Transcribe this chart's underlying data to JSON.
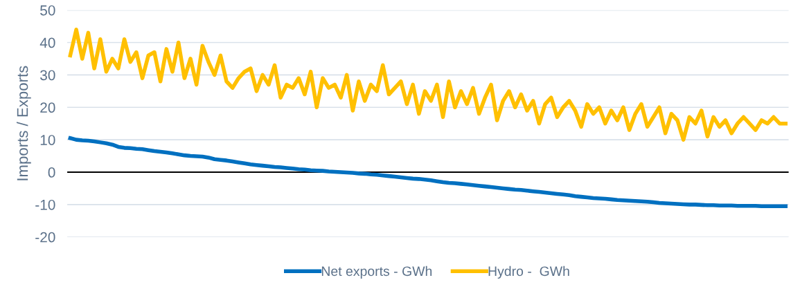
{
  "chart_data": {
    "type": "line",
    "ylabel": "Imports / Exports",
    "categories": [
      null,
      null,
      null,
      null,
      null,
      null,
      null,
      null,
      null,
      null,
      null,
      null,
      null,
      null,
      null,
      null,
      null,
      null,
      null,
      null,
      null,
      null,
      null,
      null,
      null,
      null,
      null,
      null,
      null,
      null,
      null,
      null,
      null,
      null,
      null,
      null,
      null,
      null,
      null,
      null,
      null,
      null,
      null,
      null,
      null,
      null,
      null,
      null,
      null,
      null,
      null,
      null,
      null,
      null,
      null,
      null,
      null,
      null,
      null,
      null,
      null,
      null,
      null,
      null,
      null,
      null,
      null,
      null,
      null,
      null,
      null,
      null,
      null,
      null,
      null,
      null,
      null,
      null,
      null,
      null,
      null,
      null,
      null,
      null,
      null,
      null,
      null,
      null,
      null,
      null,
      null,
      null,
      null,
      null,
      null,
      null,
      null,
      null,
      null,
      null,
      null,
      null,
      null,
      null,
      null,
      null,
      null,
      null,
      null,
      null,
      null,
      null,
      null,
      null,
      null,
      null,
      null,
      null,
      null,
      null
    ],
    "series": [
      {
        "name": "Net exports - GWh",
        "color": "#0070c0",
        "values": [
          10.5,
          10,
          9.8,
          9.7,
          9.5,
          9.2,
          8.9,
          8.5,
          7.8,
          7.5,
          7.4,
          7.2,
          7.1,
          6.8,
          6.5,
          6.3,
          6.1,
          5.8,
          5.5,
          5.2,
          5,
          4.9,
          4.8,
          4.5,
          4,
          3.8,
          3.6,
          3.3,
          3,
          2.7,
          2.4,
          2.2,
          2,
          1.8,
          1.6,
          1.5,
          1.3,
          1.1,
          0.9,
          0.8,
          0.6,
          0.5,
          0.4,
          0.2,
          0.1,
          0,
          -0.1,
          -0.2,
          -0.4,
          -0.5,
          -0.7,
          -0.8,
          -1,
          -1.2,
          -1.4,
          -1.6,
          -1.8,
          -2,
          -2.1,
          -2.3,
          -2.5,
          -2.8,
          -3.1,
          -3.3,
          -3.4,
          -3.6,
          -3.8,
          -4,
          -4.2,
          -4.4,
          -4.6,
          -4.8,
          -5,
          -5.2,
          -5.4,
          -5.5,
          -5.7,
          -5.9,
          -6.1,
          -6.3,
          -6.5,
          -6.7,
          -6.9,
          -7.1,
          -7.4,
          -7.6,
          -7.8,
          -8,
          -8.1,
          -8.2,
          -8.4,
          -8.6,
          -8.7,
          -8.8,
          -8.9,
          -9,
          -9.1,
          -9.3,
          -9.5,
          -9.6,
          -9.7,
          -9.8,
          -9.9,
          -10,
          -10,
          -10.1,
          -10.2,
          -10.2,
          -10.3,
          -10.3,
          -10.3,
          -10.4,
          -10.4,
          -10.4,
          -10.4,
          -10.5,
          -10.5,
          -10.5,
          -10.5,
          -10.5
        ]
      },
      {
        "name": "Hydro -  GWh",
        "color": "#ffc000",
        "values": [
          36,
          44,
          35,
          43,
          32,
          41,
          31,
          35,
          32,
          41,
          34,
          37,
          29,
          36,
          37,
          28,
          38,
          31,
          40,
          29,
          35,
          27,
          39,
          34,
          30,
          36,
          28,
          26,
          29,
          31,
          32,
          25,
          30,
          27,
          33,
          23,
          27,
          26,
          29,
          24,
          31,
          20,
          29,
          26,
          27,
          23,
          30,
          19,
          28,
          22,
          27,
          25,
          33,
          24,
          26,
          28,
          21,
          27,
          18,
          25,
          22,
          27,
          17,
          28,
          20,
          25,
          21,
          26,
          18,
          23,
          27,
          16,
          22,
          25,
          20,
          24,
          19,
          22,
          15,
          21,
          23,
          17,
          20,
          22,
          19,
          14,
          21,
          18,
          20,
          15,
          19,
          16,
          20,
          13,
          18,
          21,
          14,
          17,
          20,
          12,
          18,
          16,
          10,
          17,
          15,
          19,
          11,
          17,
          14,
          16,
          12,
          15,
          17,
          15,
          13,
          16,
          15,
          17,
          15,
          15
        ]
      }
    ],
    "ylim": [
      -20,
      50
    ],
    "yticks": [
      -20,
      -10,
      0,
      10,
      20,
      30,
      40,
      50
    ],
    "ref_lines": [
      {
        "axis": "y",
        "value": 0,
        "color": "#000000"
      }
    ],
    "grid": "y",
    "legend": "bottom",
    "marker": "none",
    "line_style": "solid"
  }
}
